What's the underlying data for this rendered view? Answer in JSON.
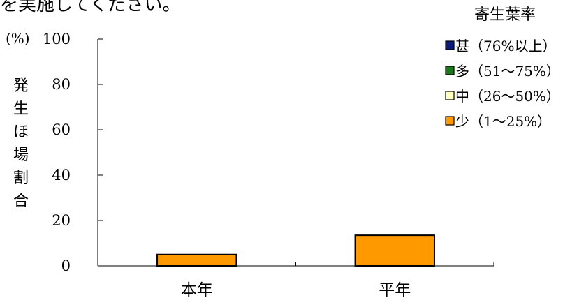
{
  "header": {
    "text": "を実施してください。"
  },
  "chart_data": {
    "type": "bar",
    "stacked": true,
    "categories": [
      "本年",
      "平年"
    ],
    "series": [
      {
        "name": "甚（76%以上）",
        "color": "#0a1a7a",
        "values": [
          0,
          0
        ]
      },
      {
        "name": "多（51～75%）",
        "color": "#1a7a1a",
        "values": [
          0,
          0
        ]
      },
      {
        "name": "中（26～50%）",
        "color": "#ffffc0",
        "values": [
          0,
          0
        ]
      },
      {
        "name": "少（1～25%）",
        "color": "#ff9900",
        "values": [
          5,
          13.5
        ]
      }
    ],
    "ylim": [
      0,
      100
    ],
    "yticks": [
      "0",
      "20",
      "40",
      "60",
      "80",
      "100"
    ],
    "yunit": "(%)",
    "ylabel": "発生ほ場割合",
    "legend_title": "寄生葉率",
    "legend_position": "top-right",
    "grid": false
  }
}
